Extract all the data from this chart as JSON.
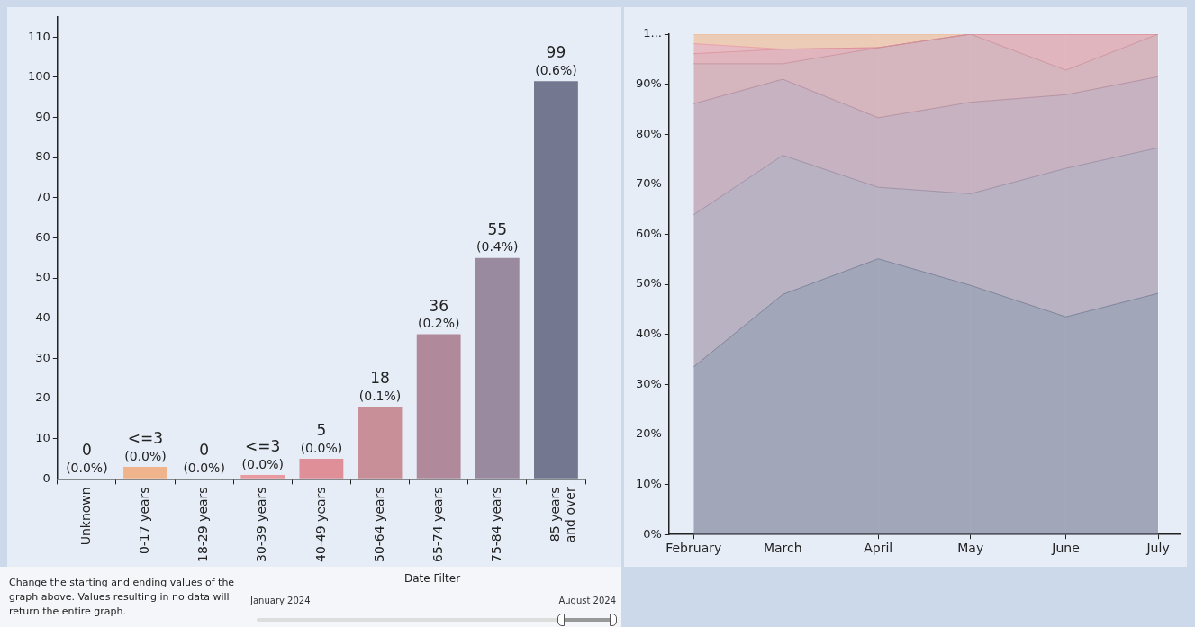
{
  "chart_data": [
    {
      "type": "bar",
      "categories": [
        "Unknown",
        "0-17 years",
        "18-29 years",
        "30-39 years",
        "40-49 years",
        "50-64 years",
        "65-74 years",
        "75-84 years",
        "85 years and over"
      ],
      "values": [
        0,
        3,
        0,
        1,
        5,
        18,
        36,
        55,
        99
      ],
      "colors": [
        "#f0b48c",
        "#f0b48c",
        "#eea79a",
        "#e89aa0",
        "#de8f98",
        "#c98f98",
        "#b08a9b",
        "#9a8aa0",
        "#737890"
      ],
      "value_labels": [
        "0\n(0.0%)",
        null,
        "0\n(0.0%)",
        null,
        "5\n(0.0%)",
        "18\n(0.1%)",
        "36\n(0.2%)",
        "55\n(0.4%)",
        "99\n(0.6%)"
      ],
      "annotations": [
        {
          "text": "<=3\n(0.0%)",
          "x": "0-17 years",
          "y": 3
        },
        {
          "text": "<=3\n(0.0%)",
          "x": "30-39 years",
          "y": 1
        }
      ],
      "ylim": [
        0,
        115
      ],
      "yticks": [
        0,
        10,
        20,
        30,
        40,
        50,
        60,
        70,
        80,
        90,
        100,
        110
      ],
      "grid": false
    },
    {
      "type": "area",
      "stacked": true,
      "x": [
        "2024-02",
        "2024-03",
        "2024-04",
        "2024-05",
        "2024-06",
        "2024-07"
      ],
      "xlim": [
        "2024-01-24",
        "2024-07-08"
      ],
      "xticks": [
        {
          "value": "2024-02",
          "label": "February"
        },
        {
          "value": "2024-03",
          "label": "March"
        },
        {
          "value": "2024-04",
          "label": "April"
        },
        {
          "value": "2024-05",
          "label": "May"
        },
        {
          "value": "2024-06",
          "label": "June"
        },
        {
          "value": "2024-07",
          "label": "July"
        }
      ],
      "ylim": [
        0,
        100
      ],
      "yticks": [
        {
          "value": 0,
          "label": "0%"
        },
        {
          "value": 10,
          "label": "10%"
        },
        {
          "value": 20,
          "label": "20%"
        },
        {
          "value": 30,
          "label": "30%"
        },
        {
          "value": 40,
          "label": "40%"
        },
        {
          "value": 50,
          "label": "50%"
        },
        {
          "value": 60,
          "label": "60%"
        },
        {
          "value": 70,
          "label": "70%"
        },
        {
          "value": 80,
          "label": "80%"
        },
        {
          "value": 90,
          "label": "90%"
        },
        {
          "value": 100,
          "label": "1..."
        }
      ],
      "grid": "x",
      "series": [
        {
          "color": "#737890",
          "values": [
            33.5,
            48,
            55.1,
            49.8,
            43.5,
            48.2
          ]
        },
        {
          "color": "#9a8aa0",
          "values": [
            30.4,
            27.8,
            14.3,
            18.3,
            29.7,
            29.1
          ]
        },
        {
          "color": "#b08a9b",
          "values": [
            22.2,
            15.2,
            13.9,
            18.3,
            14.7,
            14.2
          ]
        },
        {
          "color": "#c98f98",
          "values": [
            8,
            3.1,
            14,
            13.6,
            4.9,
            8.5
          ]
        },
        {
          "color": "#de8f98",
          "values": [
            2,
            2.9,
            0,
            0,
            7.2,
            0
          ]
        },
        {
          "color": "#e89aa0",
          "values": [
            2,
            0,
            0,
            0,
            0,
            0
          ]
        },
        {
          "color": "#f0b48c",
          "values": [
            1.9,
            3,
            2.7,
            0,
            0,
            0
          ]
        }
      ]
    },
    {
      "type": "other",
      "title": "Date Filter",
      "annotations": [
        "Change the starting and ending values of the graph above.  Values resulting in no data will return the entire graph.",
        "January 2024",
        "August 2024"
      ]
    }
  ]
}
